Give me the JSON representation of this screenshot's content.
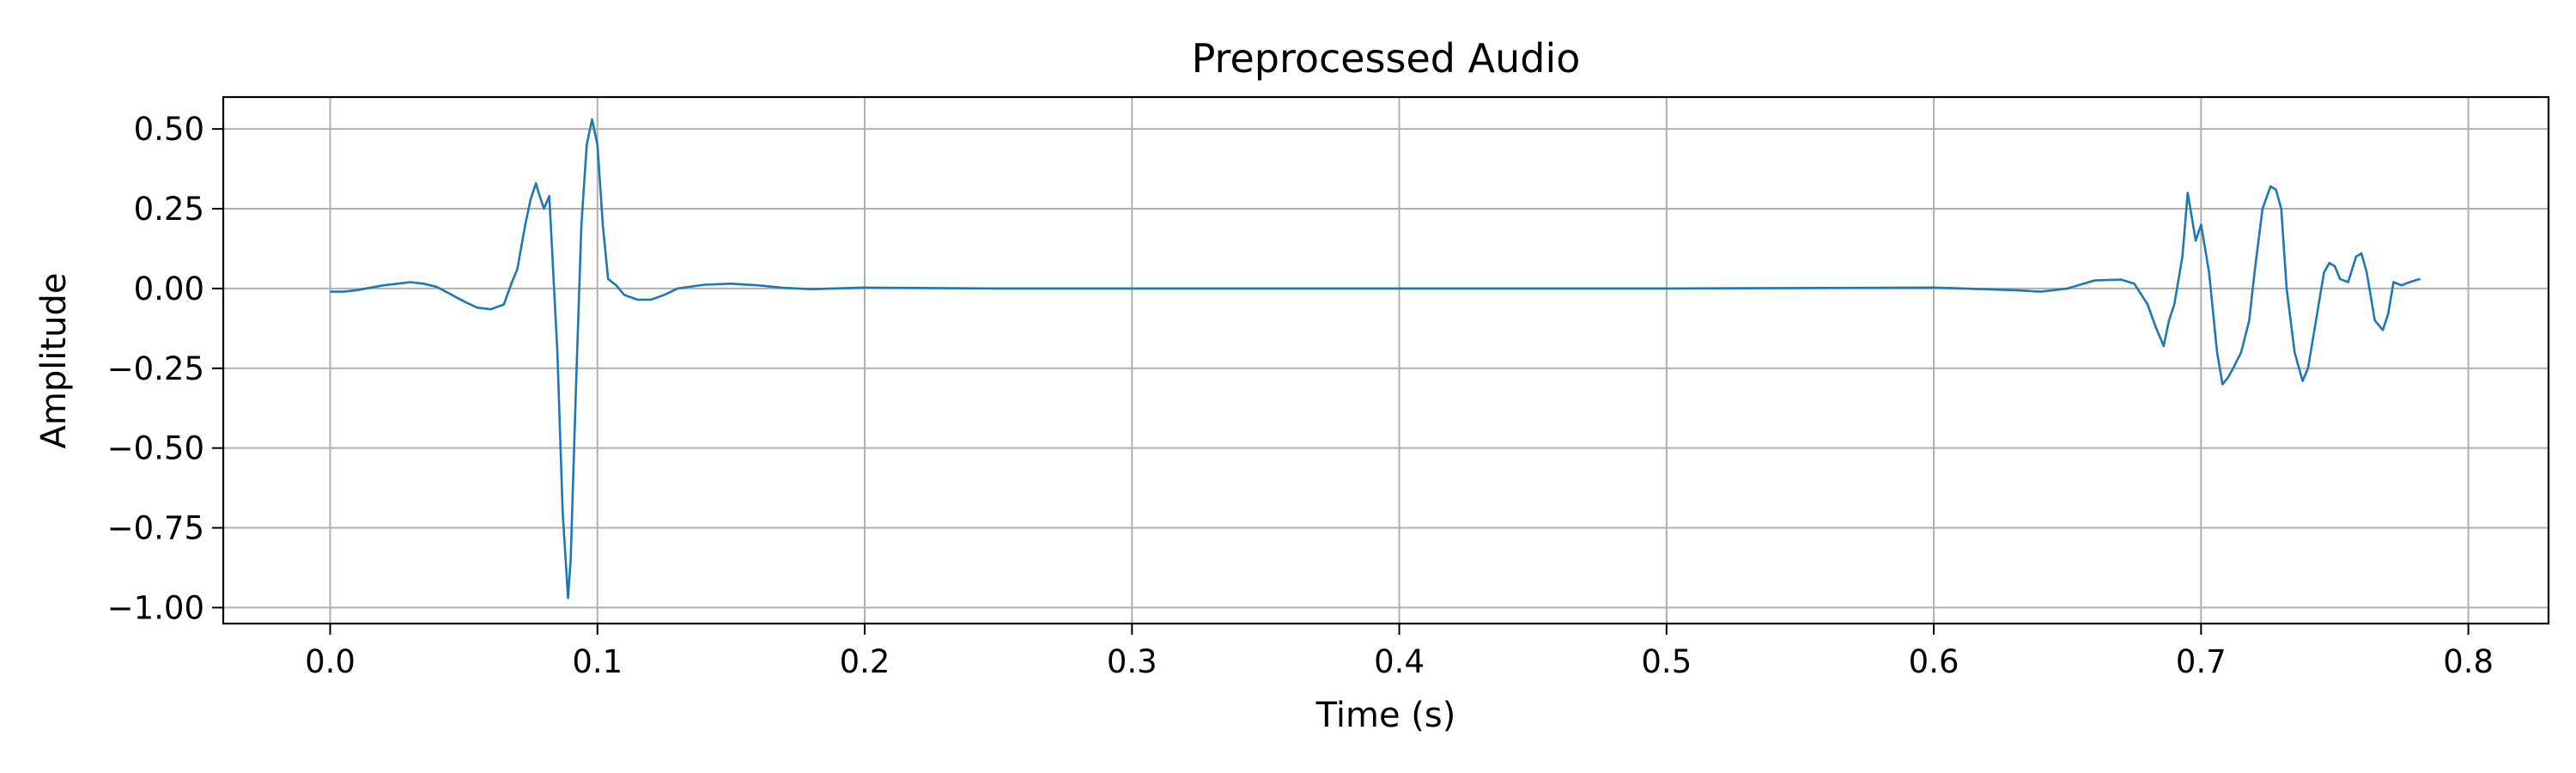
{
  "chart_data": {
    "type": "line",
    "title": "Preprocessed Audio",
    "xlabel": "Time (s)",
    "ylabel": "Amplitude",
    "xlim": [
      -0.04,
      0.83
    ],
    "ylim": [
      -1.05,
      0.6
    ],
    "xticks": [
      0.0,
      0.1,
      0.2,
      0.3,
      0.4,
      0.5,
      0.6,
      0.7,
      0.8
    ],
    "xtick_labels": [
      "0.0",
      "0.1",
      "0.2",
      "0.3",
      "0.4",
      "0.5",
      "0.6",
      "0.7",
      "0.8"
    ],
    "yticks": [
      0.5,
      0.25,
      0.0,
      -0.25,
      -0.5,
      -0.75,
      -1.0
    ],
    "ytick_labels": [
      "0.50",
      "0.25",
      "0.00",
      "−0.25",
      "−0.50",
      "−0.75",
      "−1.00"
    ],
    "grid": true,
    "series": [
      {
        "color": "#1f77b4",
        "x": [
          0.0,
          0.005,
          0.01,
          0.02,
          0.03,
          0.035,
          0.04,
          0.05,
          0.055,
          0.06,
          0.065,
          0.068,
          0.07,
          0.073,
          0.075,
          0.077,
          0.078,
          0.08,
          0.082,
          0.085,
          0.087,
          0.089,
          0.09,
          0.092,
          0.094,
          0.096,
          0.098,
          0.1,
          0.102,
          0.104,
          0.107,
          0.11,
          0.115,
          0.12,
          0.125,
          0.13,
          0.14,
          0.15,
          0.16,
          0.17,
          0.18,
          0.2,
          0.25,
          0.3,
          0.4,
          0.5,
          0.6,
          0.63,
          0.64,
          0.65,
          0.66,
          0.67,
          0.675,
          0.68,
          0.683,
          0.686,
          0.688,
          0.69,
          0.693,
          0.695,
          0.698,
          0.7,
          0.703,
          0.706,
          0.708,
          0.71,
          0.712,
          0.715,
          0.718,
          0.72,
          0.723,
          0.726,
          0.728,
          0.73,
          0.732,
          0.735,
          0.738,
          0.74,
          0.743,
          0.746,
          0.748,
          0.75,
          0.752,
          0.755,
          0.758,
          0.76,
          0.762,
          0.765,
          0.768,
          0.77,
          0.772,
          0.775,
          0.778,
          0.782
        ],
        "y": [
          -0.01,
          -0.01,
          -0.005,
          0.01,
          0.02,
          0.015,
          0.005,
          -0.04,
          -0.06,
          -0.065,
          -0.05,
          0.02,
          0.06,
          0.2,
          0.28,
          0.33,
          0.3,
          0.25,
          0.29,
          -0.2,
          -0.7,
          -0.97,
          -0.85,
          -0.3,
          0.2,
          0.45,
          0.53,
          0.45,
          0.2,
          0.03,
          0.01,
          -0.02,
          -0.035,
          -0.035,
          -0.02,
          0.0,
          0.012,
          0.015,
          0.01,
          0.002,
          -0.002,
          0.003,
          0.0,
          0.0,
          0.0,
          0.0,
          0.003,
          -0.005,
          -0.01,
          0.0,
          0.025,
          0.028,
          0.015,
          -0.05,
          -0.12,
          -0.18,
          -0.1,
          -0.05,
          0.1,
          0.3,
          0.15,
          0.2,
          0.05,
          -0.2,
          -0.3,
          -0.28,
          -0.25,
          -0.2,
          -0.1,
          0.05,
          0.25,
          0.32,
          0.31,
          0.25,
          0.0,
          -0.2,
          -0.29,
          -0.25,
          -0.1,
          0.05,
          0.08,
          0.07,
          0.03,
          0.02,
          0.1,
          0.11,
          0.05,
          -0.1,
          -0.13,
          -0.08,
          0.02,
          0.01,
          0.02,
          0.03
        ]
      }
    ]
  }
}
